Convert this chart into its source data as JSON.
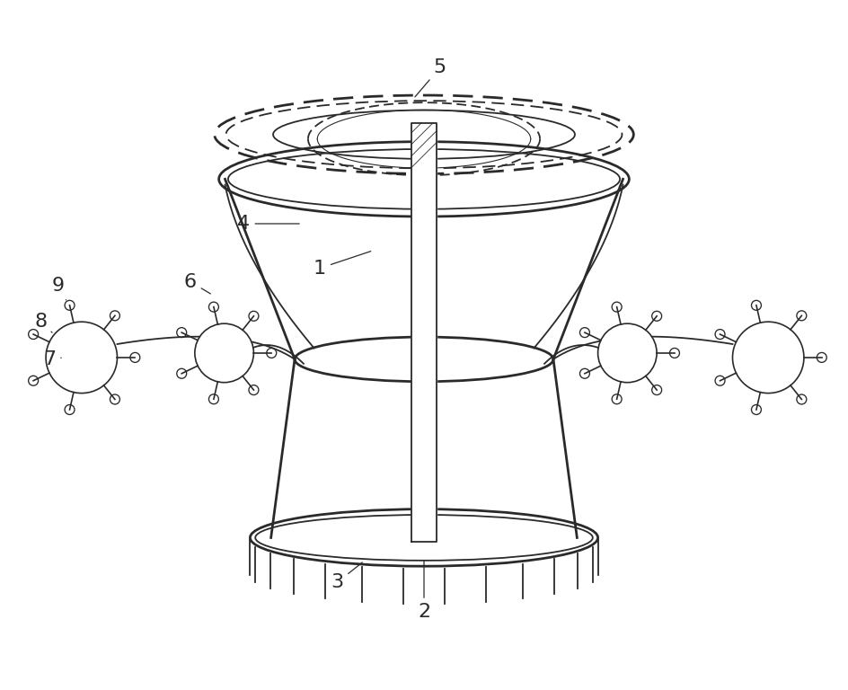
{
  "bg_color": "#ffffff",
  "line_color": "#2a2a2a",
  "number_color": "#2a2a2a",
  "fig_width": 9.45,
  "fig_height": 7.68,
  "dpi": 100
}
